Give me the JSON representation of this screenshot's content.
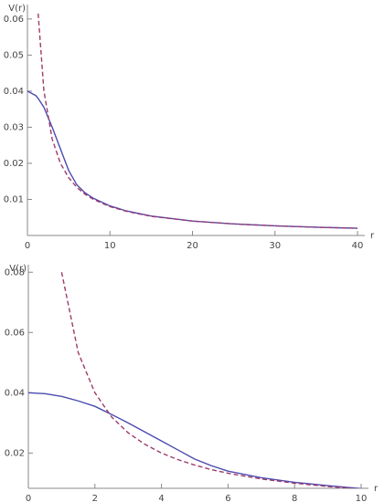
{
  "chart_data": [
    {
      "type": "line",
      "x_label": "r",
      "y_label": "V(r)",
      "xlim": [
        0,
        40
      ],
      "ylim": [
        0,
        0.064
      ],
      "xticks": [
        0,
        10,
        20,
        30,
        40
      ],
      "yticks": [
        0.01,
        0.02,
        0.03,
        0.04,
        0.05,
        0.06
      ],
      "x": [
        0,
        1,
        1.3,
        2,
        3,
        4,
        5,
        6,
        7,
        8,
        10,
        12,
        15,
        20,
        25,
        30,
        35,
        40
      ],
      "series": [
        {
          "color": "#4b4bb0",
          "dashed": false,
          "values": [
            0.04,
            0.0388,
            0.038,
            0.0355,
            0.03,
            0.024,
            0.018,
            0.014,
            0.0118,
            0.0103,
            0.0082,
            0.0068,
            0.0054,
            0.004,
            0.0032,
            0.00267,
            0.00229,
            0.002
          ]
        },
        {
          "color": "#9e3a6b",
          "dashed": true,
          "values": [
            null,
            null,
            0.0615,
            0.04,
            0.0267,
            0.02,
            0.016,
            0.0133,
            0.0114,
            0.01,
            0.008,
            0.0067,
            0.0053,
            0.004,
            0.0032,
            0.00267,
            0.00229,
            0.002
          ]
        }
      ]
    },
    {
      "type": "line",
      "x_label": "r",
      "y_label": "V(r)",
      "xlim": [
        0,
        10
      ],
      "ylim": [
        0.0083,
        0.0825
      ],
      "xticks": [
        0,
        2,
        4,
        6,
        8,
        10
      ],
      "yticks": [
        0.02,
        0.04,
        0.06,
        0.08
      ],
      "x": [
        0,
        0.5,
        1,
        1.5,
        2,
        2.5,
        3,
        3.5,
        4,
        4.5,
        5,
        5.5,
        6,
        7,
        8,
        9,
        10
      ],
      "series": [
        {
          "color": "#4b4bb0",
          "dashed": false,
          "values": [
            0.04,
            0.0397,
            0.0388,
            0.0373,
            0.0355,
            0.0328,
            0.03,
            0.027,
            0.024,
            0.021,
            0.018,
            0.0158,
            0.014,
            0.0118,
            0.0103,
            0.0092,
            0.0082
          ]
        },
        {
          "color": "#9e3a6b",
          "dashed": true,
          "values": [
            null,
            null,
            0.08,
            0.0533,
            0.04,
            0.032,
            0.0267,
            0.0229,
            0.02,
            0.0178,
            0.016,
            0.0145,
            0.0133,
            0.0114,
            0.01,
            0.0089,
            0.008
          ]
        }
      ]
    }
  ]
}
